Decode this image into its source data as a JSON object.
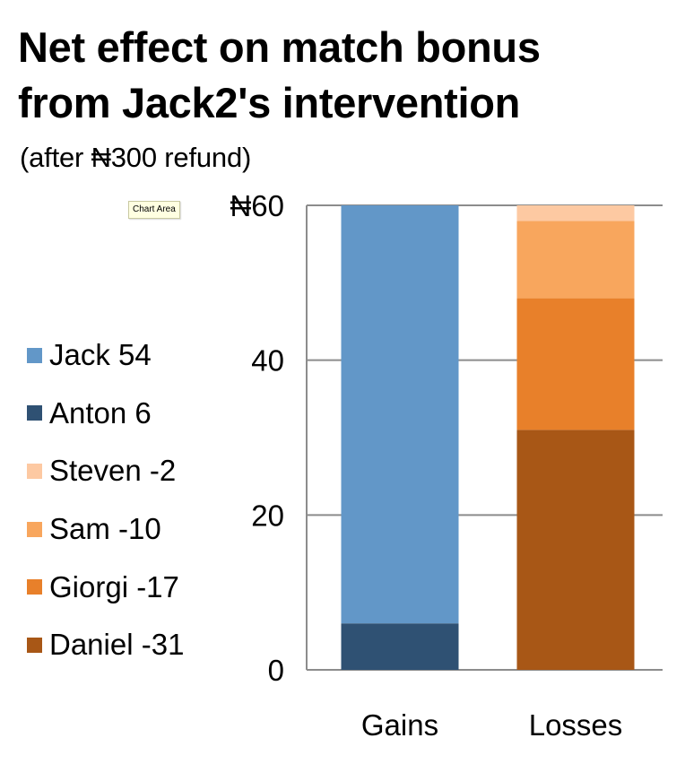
{
  "chart_data": {
    "type": "bar",
    "stacked": true,
    "title": "Net effect on match bonus from Jack2's intervention",
    "title_lines": [
      "Net effect on match bonus",
      "from Jack2's intervention"
    ],
    "subtitle": "(after ₦300 refund)",
    "categories": [
      "Gains",
      "Losses"
    ],
    "series": [
      {
        "name": "Anton 6",
        "values": [
          6,
          0
        ],
        "color": "#2f5173"
      },
      {
        "name": "Jack 54",
        "values": [
          54,
          0
        ],
        "color": "#6297c8"
      },
      {
        "name": "Daniel -31",
        "values": [
          0,
          31
        ],
        "color": "#a85716"
      },
      {
        "name": "Giorgi -17",
        "values": [
          0,
          17
        ],
        "color": "#e8802a"
      },
      {
        "name": "Sam -10",
        "values": [
          0,
          10
        ],
        "color": "#f8a65d"
      },
      {
        "name": "Steven -2",
        "values": [
          0,
          2
        ],
        "color": "#fdc9a2"
      }
    ],
    "legend_order": [
      "Jack 54",
      "Anton 6",
      "Steven -2",
      "Sam -10",
      "Giorgi -17",
      "Daniel -31"
    ],
    "y_ticks": [
      0,
      20,
      40,
      60
    ],
    "y_tick_labels": [
      "0",
      "20",
      "40",
      "₦60"
    ],
    "ylim": [
      0,
      60
    ],
    "grid": true,
    "legend_position": "left",
    "xlabel": "",
    "ylabel": ""
  },
  "tooltip": "Chart Area"
}
